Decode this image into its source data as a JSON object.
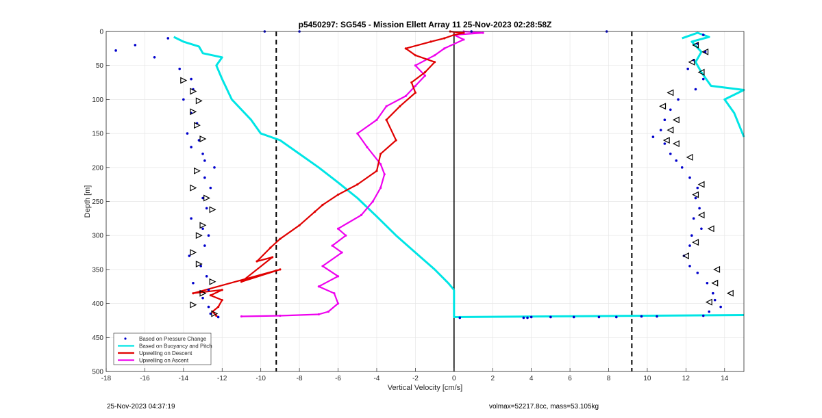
{
  "chart_data": {
    "type": "scatter",
    "title": "p5450297: SG545 - Mission Ellett Array 11 25-Nov-2023 02:28:58Z",
    "xlabel": "Vertical Velocity [cm/s]",
    "ylabel": "Depth [m]",
    "xlim": [
      -18,
      15
    ],
    "ylim": [
      0,
      500
    ],
    "y_reversed": true,
    "x_ticks": [
      "-18",
      "-16",
      "-14",
      "-12",
      "-10",
      "-8",
      "-6",
      "-4",
      "-2",
      "0",
      "2",
      "4",
      "6",
      "8",
      "10",
      "12",
      "14"
    ],
    "y_ticks": [
      "0",
      "50",
      "100",
      "150",
      "200",
      "250",
      "300",
      "350",
      "400",
      "450",
      "500"
    ],
    "grid": true,
    "legend_position": "bottom-left",
    "vertical_lines": [
      {
        "x": -9.2,
        "style": "dashed",
        "color": "#000000"
      },
      {
        "x": 0,
        "style": "solid",
        "color": "#000000"
      },
      {
        "x": 9.2,
        "style": "dashed",
        "color": "#000000"
      }
    ],
    "series": [
      {
        "name": "Based on Pressure Change",
        "kind": "markers",
        "color": "#0000cc",
        "descent_x": [
          -14.8,
          -16.5,
          -17.5,
          -15.5,
          -14.2,
          -13.6,
          -13.5,
          -14.0,
          -13.6,
          -13.3,
          -13.8,
          -13.2,
          -13.6,
          -13.0,
          -12.9,
          -12.4,
          -12.9,
          -12.6,
          -13.0,
          -12.8,
          -13.6,
          -13.0,
          -12.7,
          -12.9,
          -13.7,
          -13.1,
          -12.8,
          -13.5,
          -12.7,
          -13.0,
          -12.7,
          -12.6,
          -12.2
        ],
        "descent_y": [
          10,
          20,
          28,
          38,
          55,
          70,
          85,
          100,
          120,
          135,
          150,
          160,
          170,
          180,
          190,
          200,
          215,
          230,
          245,
          260,
          275,
          290,
          300,
          315,
          330,
          345,
          360,
          370,
          380,
          392,
          405,
          415,
          420
        ],
        "ascent_x": [
          12.9,
          12.6,
          13.0,
          12.4,
          12.1,
          12.9,
          12.5,
          11.6,
          11.2,
          10.9,
          10.7,
          10.3,
          10.9,
          11.2,
          11.5,
          11.8,
          12.2,
          12.6,
          12.5,
          12.7,
          12.4,
          12.8,
          12.3,
          12.2,
          11.9,
          12.2,
          12.6,
          13.1,
          13.4,
          13.5,
          13.8,
          13.2,
          12.9
        ],
        "ascent_y": [
          5,
          18,
          30,
          42,
          55,
          70,
          85,
          100,
          115,
          130,
          145,
          155,
          165,
          180,
          190,
          200,
          215,
          230,
          245,
          260,
          275,
          290,
          300,
          315,
          330,
          345,
          355,
          370,
          385,
          395,
          405,
          412,
          418
        ],
        "bottom_x": [
          0.3,
          3.6,
          3.8,
          4.0,
          5.0,
          6.2,
          7.5,
          8.4,
          9.7,
          10.5
        ],
        "bottom_y": [
          421,
          421,
          421,
          420,
          420,
          420,
          420,
          420,
          419,
          419
        ],
        "outliers_x": [
          -9.8,
          -8.0,
          0.9,
          7.9
        ],
        "outliers_y": [
          0,
          0,
          0,
          0
        ]
      },
      {
        "name": "Based on Buoyancy and Pitch",
        "kind": "line",
        "color": "#00e5e5",
        "descent_x": [
          -14.5,
          -14.0,
          -13.2,
          -13.0,
          -12.0,
          -12.3,
          -12.0,
          -11.5,
          -10.5,
          -10.0,
          -9.0,
          -8.0,
          -7.0,
          -6.0,
          -5.0,
          -4.0,
          -3.0,
          -2.0,
          -1.0,
          -0.3,
          0
        ],
        "descent_y": [
          8,
          15,
          22,
          32,
          38,
          50,
          70,
          100,
          130,
          150,
          160,
          180,
          200,
          222,
          245,
          272,
          300,
          325,
          350,
          370,
          380
        ],
        "drop_x": [
          0,
          0,
          15
        ],
        "drop_y": [
          380,
          420,
          417
        ],
        "ascent_x": [
          11.8,
          12.6,
          13.2,
          12.3,
          12.8,
          12.5,
          12.8,
          13.3,
          15.0,
          14.0,
          14.5,
          15.0
        ],
        "ascent_y": [
          10,
          2,
          8,
          15,
          30,
          45,
          60,
          80,
          86,
          100,
          120,
          155
        ]
      },
      {
        "name": "Upwelling on Descent",
        "kind": "line",
        "color": "#e00000",
        "x": [
          -12.3,
          -12.5,
          -12.2,
          -12.0,
          -12.6,
          -12.0,
          -13.5,
          -9.0,
          -11.0,
          -9.4,
          -10.2,
          -9.5,
          -9.0,
          -8.0,
          -7.2,
          -6.8,
          -6.0,
          -5.0,
          -4.0,
          -3.8,
          -3.0,
          -3.5,
          -2.8,
          -2.0,
          -2.2,
          -1.5,
          -1.0,
          -2.0,
          -2.5,
          -1.2,
          -0.5,
          0.0,
          0.5,
          -0.2
        ],
        "y": [
          418,
          412,
          405,
          395,
          388,
          380,
          385,
          350,
          368,
          332,
          338,
          318,
          305,
          285,
          265,
          255,
          240,
          225,
          205,
          180,
          160,
          130,
          110,
          90,
          75,
          60,
          45,
          35,
          25,
          15,
          10,
          5,
          2,
          0
        ]
      },
      {
        "name": "Upwelling on Ascent",
        "kind": "line",
        "color": "#ee00ee",
        "x": [
          -11.0,
          -9.0,
          -7.0,
          -6.5,
          -6.0,
          -6.2,
          -7.0,
          -6.0,
          -6.8,
          -5.8,
          -6.3,
          -5.6,
          -6.0,
          -4.8,
          -4.2,
          -3.8,
          -3.6,
          -3.8,
          -4.5,
          -5.0,
          -4.0,
          -3.5,
          -2.5,
          -2.0,
          -1.5,
          -2.0,
          -1.0,
          -0.5,
          0.5,
          0.0,
          1.5,
          0.5
        ],
        "y": [
          419,
          418,
          416,
          412,
          400,
          385,
          375,
          360,
          345,
          325,
          315,
          300,
          290,
          270,
          250,
          230,
          210,
          195,
          170,
          150,
          130,
          110,
          95,
          80,
          65,
          50,
          35,
          25,
          12,
          5,
          2,
          0
        ]
      }
    ],
    "triangle_markers": {
      "descent_x": [
        -14.0,
        -13.5,
        -13.2,
        -13.5,
        -13.3,
        -13.0,
        -13.3,
        -13.5,
        -12.8,
        -12.5,
        -13.0,
        -13.2,
        -13.5,
        -13.2,
        -12.5,
        -13.0,
        -13.5,
        -12.4
      ],
      "descent_y": [
        72,
        88,
        102,
        118,
        138,
        158,
        205,
        230,
        245,
        262,
        285,
        300,
        325,
        342,
        368,
        385,
        402,
        415
      ],
      "ascent_x": [
        12.5,
        13.0,
        12.3,
        12.8,
        11.2,
        10.8,
        11.5,
        11.2,
        11.0,
        11.5,
        12.2,
        12.8,
        12.5,
        12.8,
        13.3,
        12.5,
        12.0,
        13.6,
        13.5,
        14.3,
        13.2
      ],
      "ascent_y": [
        20,
        30,
        45,
        60,
        90,
        110,
        130,
        145,
        160,
        165,
        185,
        225,
        240,
        270,
        290,
        310,
        330,
        350,
        370,
        385,
        398
      ]
    },
    "legend": [
      "Based on Pressure Change",
      "Based on Buoyancy and Pitch",
      "Upwelling on Descent",
      "Upwelling on Ascent"
    ]
  },
  "footer": {
    "left": "25-Nov-2023 04:37:19",
    "right": "volmax=52217.8cc, mass=53.105kg"
  }
}
